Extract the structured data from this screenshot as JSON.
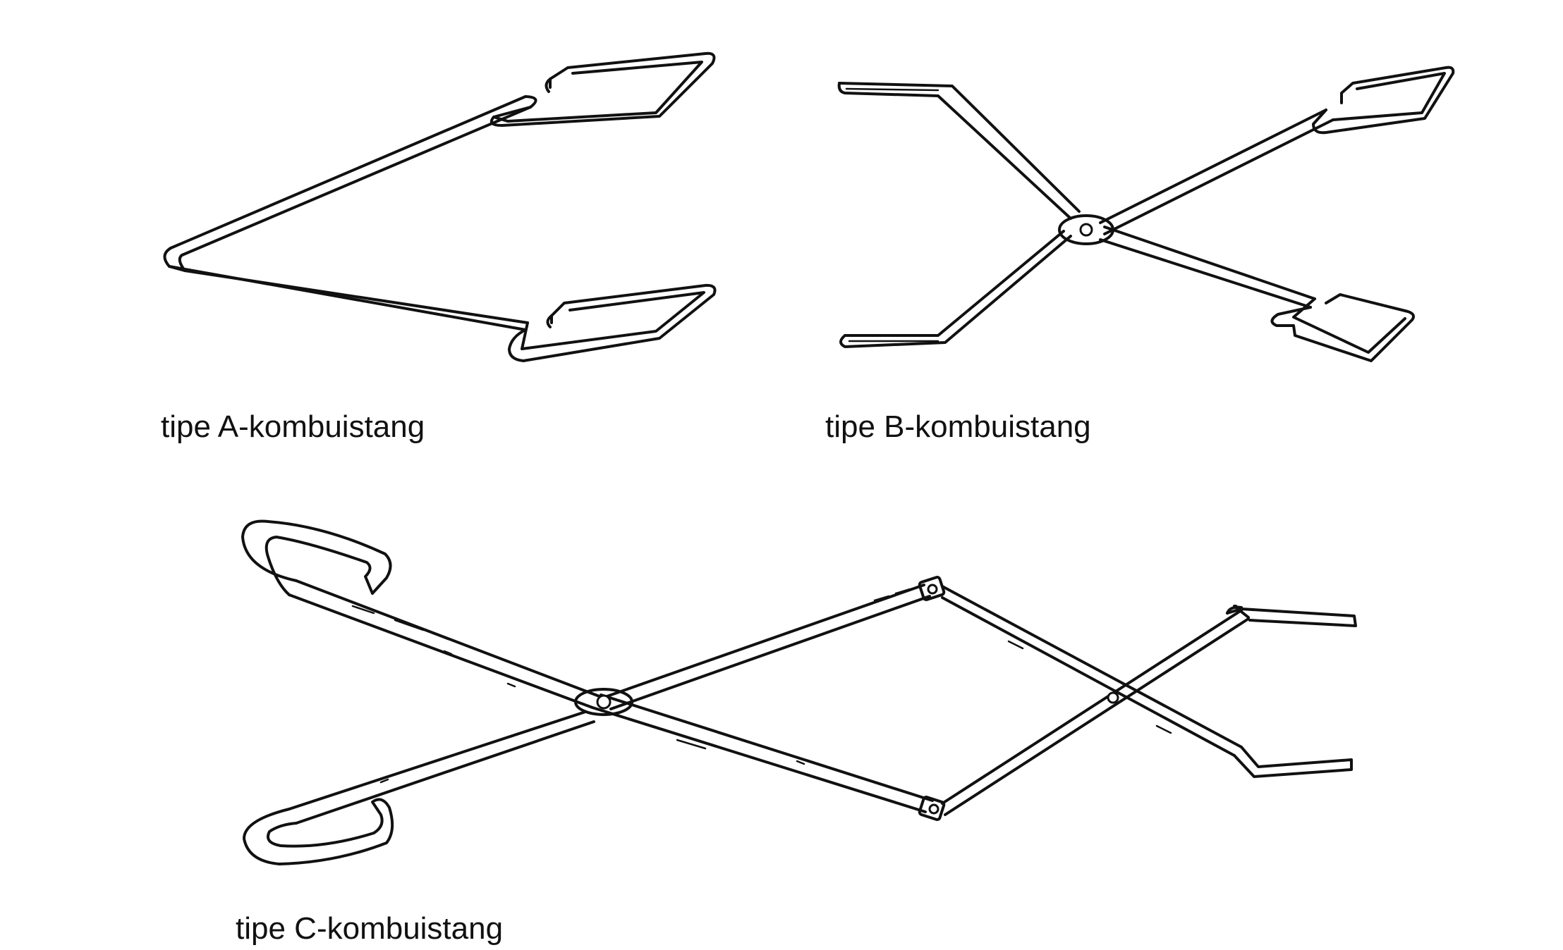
{
  "figures": [
    {
      "id": "a",
      "caption": "tipe A-kombuistang"
    },
    {
      "id": "b",
      "caption": "tipe B-kombuistang"
    },
    {
      "id": "c",
      "caption": "tipe C-kombuistang"
    }
  ],
  "colors": {
    "ink": "#111111",
    "background": "#ffffff"
  }
}
